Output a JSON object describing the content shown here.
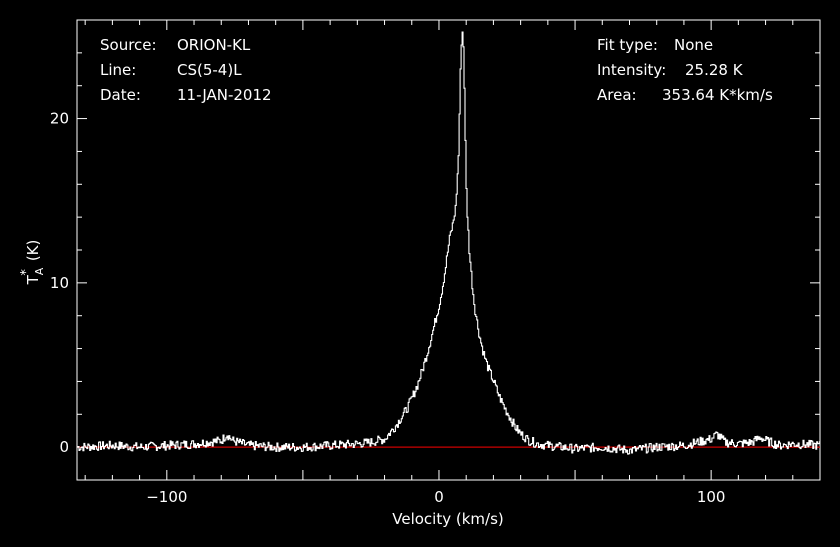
{
  "info": {
    "source_label": "Source:",
    "source_value": "ORION-KL",
    "line_label": "Line:",
    "line_value": "CS(5-4)L",
    "date_label": "Date:",
    "date_value": "11-JAN-2012",
    "fit_label": "Fit type:",
    "fit_value": "None",
    "intensity_label": "Intensity:",
    "intensity_value": "25.28 K",
    "area_label": "Area:",
    "area_value": "353.64 K*km/s"
  },
  "colors": {
    "background": "#000000",
    "spectrum": "#ffffff",
    "baseline": "#cc0000",
    "axes": "#ffffff"
  },
  "chart_data": {
    "type": "line",
    "xlabel": "Velocity (km/s)",
    "ylabel_main": "T",
    "ylabel_sub": "A",
    "ylabel_sup": "*",
    "ylabel_unit": "(K)",
    "xlim": [
      -133,
      140
    ],
    "ylim": [
      -2,
      26
    ],
    "xticks": [
      -100,
      0,
      100
    ],
    "yticks": [
      0,
      10,
      20
    ],
    "xtick_labels": [
      "−100",
      "0",
      "100"
    ],
    "ytick_labels": [
      "0",
      "10",
      "20"
    ],
    "grid": false,
    "baseline": 0,
    "series": [
      {
        "x": [
          -133,
          -120,
          -110,
          -100,
          -90,
          -80,
          -78,
          -76,
          -70,
          -60,
          -50,
          -40,
          -30,
          -25,
          -20,
          -18,
          -16,
          -14,
          -12,
          -10,
          -8,
          -6,
          -4,
          -2,
          0,
          1,
          2,
          3,
          4,
          5,
          6,
          7,
          7.5,
          8,
          8.5,
          9,
          9.5,
          10,
          11,
          12,
          13,
          14,
          15,
          16,
          17,
          18,
          20,
          22,
          24,
          26,
          28,
          30,
          33,
          36,
          40,
          45,
          50,
          60,
          70,
          80,
          90,
          95,
          100,
          102,
          105,
          110,
          115,
          118,
          120,
          125,
          130,
          140
        ],
        "y": [
          0.0,
          0.1,
          0.0,
          0.1,
          0.2,
          0.4,
          0.8,
          0.4,
          0.1,
          0.0,
          0.0,
          0.1,
          0.2,
          0.3,
          0.5,
          0.9,
          1.3,
          1.8,
          2.3,
          3.0,
          3.8,
          4.8,
          6.0,
          7.3,
          8.7,
          9.6,
          10.6,
          11.8,
          12.9,
          13.6,
          14.6,
          17.5,
          21.0,
          24.5,
          25.3,
          24.0,
          19.0,
          15.0,
          12.0,
          10.0,
          8.5,
          7.5,
          6.6,
          5.9,
          5.3,
          4.8,
          4.0,
          3.1,
          2.4,
          1.8,
          1.2,
          0.8,
          0.4,
          0.2,
          0.1,
          0.0,
          -0.1,
          0.0,
          -0.2,
          0.0,
          0.1,
          0.3,
          0.5,
          0.8,
          0.3,
          0.2,
          0.3,
          0.6,
          0.4,
          0.1,
          0.2,
          0.1
        ]
      }
    ]
  }
}
